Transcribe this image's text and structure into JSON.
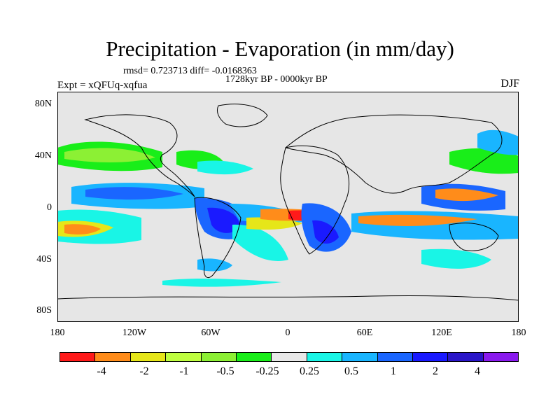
{
  "title": "Precipitation - Evaporation (in mm/day)",
  "stats": "rmsd= 0.723713 diff= -0.0168363",
  "period": "1728kyr BP - 0000kyr BP",
  "experiment": "Expt = xQFUq-xqfua",
  "season": "DJF",
  "y_ticks": [
    "80N",
    "40N",
    "0",
    "40S",
    "80S"
  ],
  "x_ticks": [
    "180",
    "120W",
    "60W",
    "0",
    "60E",
    "120E",
    "180"
  ],
  "colorbar": {
    "colors": [
      "#ff1a1a",
      "#ff8c1a",
      "#e6e619",
      "#bfff40",
      "#8cf034",
      "#19ee19",
      "#e8e8e8",
      "#19f5e6",
      "#19b5ff",
      "#1a66ff",
      "#1a1aff",
      "#2a16c8",
      "#8a1aee"
    ],
    "labels": [
      "-4",
      "-2",
      "-1",
      "-0.5",
      "-0.25",
      "0.25",
      "0.5",
      "1",
      "2",
      "4"
    ]
  }
}
